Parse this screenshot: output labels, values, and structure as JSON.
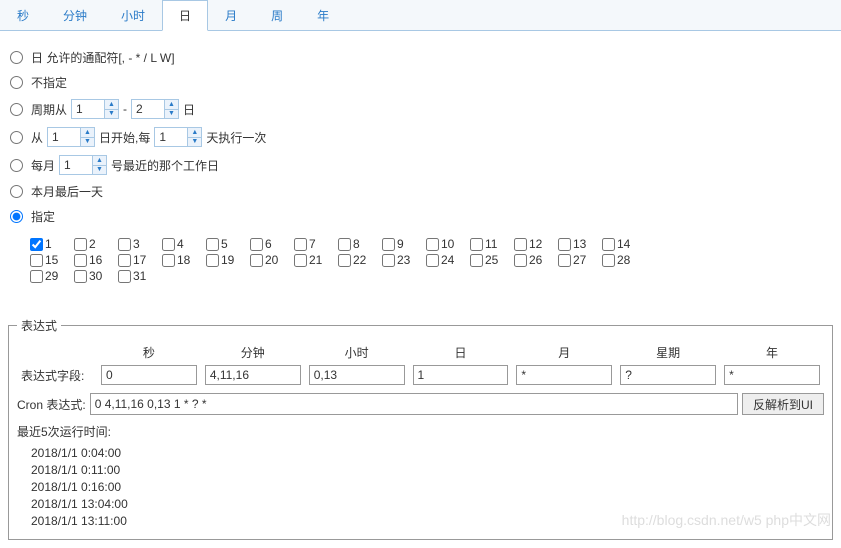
{
  "tabs": [
    {
      "label": "秒",
      "active": false
    },
    {
      "label": "分钟",
      "active": false
    },
    {
      "label": "小时",
      "active": false
    },
    {
      "label": "日",
      "active": true
    },
    {
      "label": "月",
      "active": false
    },
    {
      "label": "周",
      "active": false
    },
    {
      "label": "年",
      "active": false
    }
  ],
  "options": {
    "wildcard": {
      "label": "日 允许的通配符[, - * / L W]"
    },
    "unspecified": {
      "label": "不指定"
    },
    "cycle": {
      "prefix": "周期从",
      "from": "1",
      "sep": "-",
      "to": "2",
      "suffix": "日"
    },
    "interval": {
      "prefix": "从",
      "start": "1",
      "mid": "日开始,每",
      "every": "1",
      "suffix": "天执行一次"
    },
    "nearest": {
      "prefix": "每月",
      "day": "1",
      "suffix": "号最近的那个工作日"
    },
    "lastday": {
      "label": "本月最后一天"
    },
    "specify": {
      "label": "指定"
    }
  },
  "days": [
    1,
    2,
    3,
    4,
    5,
    6,
    7,
    8,
    9,
    10,
    11,
    12,
    13,
    14,
    15,
    16,
    17,
    18,
    19,
    20,
    21,
    22,
    23,
    24,
    25,
    26,
    27,
    28,
    29,
    30,
    31
  ],
  "checked_days": [
    1
  ],
  "expr": {
    "legend": "表达式",
    "headers": [
      "秒",
      "分钟",
      "小时",
      "日",
      "月",
      "星期",
      "年"
    ],
    "row_label": "表达式字段:",
    "values": [
      "0",
      "4,11,16",
      "0,13",
      "1",
      "*",
      "?",
      "*"
    ],
    "cron_label": "Cron 表达式:",
    "cron_value": "0 4,11,16 0,13 1 * ? *",
    "parse_btn": "反解析到UI",
    "runs_label": "最近5次运行时间:",
    "runs": [
      "2018/1/1 0:04:00",
      "2018/1/1 0:11:00",
      "2018/1/1 0:16:00",
      "2018/1/1 13:04:00",
      "2018/1/1 13:11:00"
    ]
  },
  "watermark": "http://blog.csdn.net/w5 php中文网"
}
